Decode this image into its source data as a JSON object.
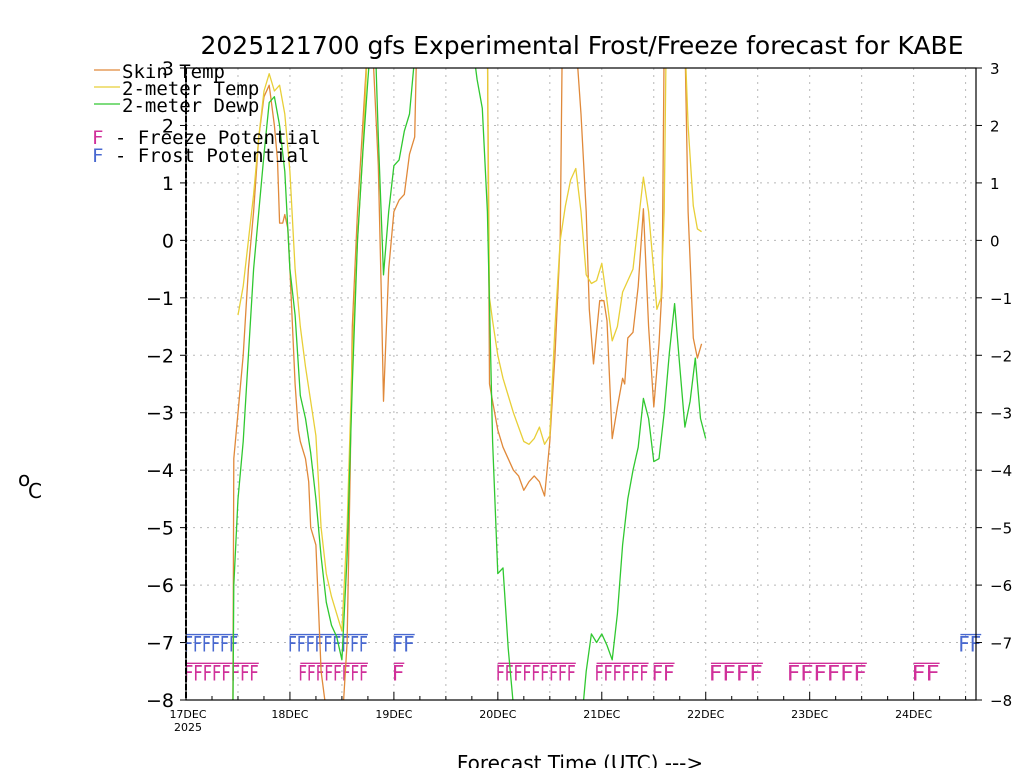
{
  "chart_data": {
    "type": "line",
    "title": "2025121700 gfs Experimental Frost/Freeze forecast for KABE",
    "ylabel": "°C",
    "ylabel_sup": "o",
    "ylabel_main": "C",
    "xlabel": "Forecast Time (UTC) --->",
    "ylim": [
      -8,
      3
    ],
    "xlim": [
      0,
      7.6
    ],
    "yticks": [
      3,
      2,
      1,
      0,
      -1,
      -2,
      -3,
      -4,
      -5,
      -6,
      -7,
      -8
    ],
    "ytick_labels": [
      "3",
      "2",
      "1",
      "0",
      "−1",
      "−2",
      "−3",
      "−4",
      "−5",
      "−6",
      "−7",
      "−8"
    ],
    "x_day_ticks": [
      {
        "x": 0,
        "label": "17DEC"
      },
      {
        "x": 1,
        "label": "18DEC"
      },
      {
        "x": 2,
        "label": "19DEC"
      },
      {
        "x": 3,
        "label": "20DEC"
      },
      {
        "x": 4,
        "label": "21DEC"
      },
      {
        "x": 5,
        "label": "22DEC"
      },
      {
        "x": 6,
        "label": "23DEC"
      },
      {
        "x": 7,
        "label": "24DEC"
      }
    ],
    "year_label": "2025",
    "legend": [
      {
        "name": "Skin Temp",
        "color": "#e0893a"
      },
      {
        "name": "2-meter Temp",
        "color": "#e8cf38"
      },
      {
        "name": "2-meter Dewp",
        "color": "#30c830"
      }
    ],
    "flag_legend": [
      {
        "letter": "F",
        "text": " - Freeze Potential",
        "color": "#d0309a"
      },
      {
        "letter": "F",
        "text": " - Frost Potential",
        "color": "#4868d0"
      }
    ],
    "series": [
      {
        "name": "Skin Temp",
        "color": "#e0893a",
        "points": [
          [
            0.45,
            -8.5
          ],
          [
            0.46,
            -3.8
          ],
          [
            0.5,
            -3
          ],
          [
            0.55,
            -2
          ],
          [
            0.6,
            -0.5
          ],
          [
            0.65,
            0.5
          ],
          [
            0.7,
            1.8
          ],
          [
            0.75,
            2.5
          ],
          [
            0.8,
            2.7
          ],
          [
            0.85,
            2
          ],
          [
            0.88,
            1.4
          ],
          [
            0.9,
            0.3
          ],
          [
            0.93,
            0.3
          ],
          [
            0.95,
            0.45
          ],
          [
            0.98,
            0.2
          ],
          [
            1.0,
            -0.5
          ],
          [
            1.05,
            -2.5
          ],
          [
            1.08,
            -3.3
          ],
          [
            1.1,
            -3.5
          ],
          [
            1.15,
            -3.8
          ],
          [
            1.18,
            -4.2
          ],
          [
            1.2,
            -5
          ],
          [
            1.25,
            -5.3
          ],
          [
            1.3,
            -7.5
          ],
          [
            1.35,
            -8.2
          ],
          [
            1.5,
            -8.5
          ],
          [
            1.55,
            -7
          ],
          [
            1.58,
            -4
          ],
          [
            1.6,
            -1.5
          ],
          [
            1.65,
            0.5
          ],
          [
            1.7,
            2
          ],
          [
            1.75,
            3.5
          ],
          [
            1.8,
            3.2
          ],
          [
            1.85,
            1.3
          ],
          [
            1.88,
            -1
          ],
          [
            1.9,
            -2.8
          ],
          [
            1.95,
            -0.5
          ],
          [
            2.0,
            0.5
          ],
          [
            2.05,
            0.7
          ],
          [
            2.1,
            0.8
          ],
          [
            2.15,
            1.5
          ],
          [
            2.2,
            1.8
          ],
          [
            2.22,
            3.5
          ]
        ]
      },
      {
        "name": "Skin Temp",
        "color": "#e0893a",
        "points": [
          [
            2.9,
            3.5
          ],
          [
            2.92,
            -2.5
          ],
          [
            2.95,
            -2.8
          ],
          [
            3.0,
            -3.3
          ],
          [
            3.05,
            -3.6
          ],
          [
            3.1,
            -3.8
          ],
          [
            3.15,
            -4.0
          ],
          [
            3.2,
            -4.1
          ],
          [
            3.25,
            -4.35
          ],
          [
            3.3,
            -4.2
          ],
          [
            3.35,
            -4.1
          ],
          [
            3.4,
            -4.2
          ],
          [
            3.45,
            -4.45
          ],
          [
            3.5,
            -3.5
          ],
          [
            3.55,
            -2
          ],
          [
            3.6,
            0
          ],
          [
            3.62,
            3.5
          ]
        ]
      },
      {
        "name": "Skin Temp",
        "color": "#e0893a",
        "points": [
          [
            3.75,
            3.5
          ],
          [
            3.8,
            2.2
          ],
          [
            3.85,
            0.5
          ],
          [
            3.88,
            -1.2
          ],
          [
            3.92,
            -2.15
          ],
          [
            3.95,
            -1.6
          ],
          [
            3.98,
            -1.05
          ],
          [
            4.02,
            -1.05
          ],
          [
            4.05,
            -1.4
          ],
          [
            4.1,
            -3.45
          ],
          [
            4.15,
            -2.9
          ],
          [
            4.2,
            -2.4
          ],
          [
            4.22,
            -2.5
          ],
          [
            4.25,
            -1.7
          ],
          [
            4.3,
            -1.6
          ],
          [
            4.35,
            -0.8
          ],
          [
            4.4,
            0.55
          ],
          [
            4.45,
            -1.5
          ],
          [
            4.5,
            -2.9
          ],
          [
            4.55,
            -1.8
          ],
          [
            4.58,
            -0.8
          ],
          [
            4.6,
            3.5
          ]
        ]
      },
      {
        "name": "Skin Temp",
        "color": "#e0893a",
        "points": [
          [
            4.8,
            3.5
          ],
          [
            4.83,
            0.5
          ],
          [
            4.88,
            -1.7
          ],
          [
            4.92,
            -2.05
          ],
          [
            4.96,
            -1.8
          ]
        ]
      },
      {
        "name": "2-meter Temp",
        "color": "#e8cf38",
        "points": [
          [
            0.5,
            -1.3
          ],
          [
            0.55,
            -0.8
          ],
          [
            0.6,
            0
          ],
          [
            0.65,
            0.8
          ],
          [
            0.7,
            1.8
          ],
          [
            0.75,
            2.6
          ],
          [
            0.8,
            2.9
          ],
          [
            0.85,
            2.6
          ],
          [
            0.9,
            2.7
          ],
          [
            0.95,
            2.2
          ],
          [
            1.0,
            1.2
          ],
          [
            1.05,
            -0.5
          ],
          [
            1.1,
            -1.5
          ],
          [
            1.15,
            -2.2
          ],
          [
            1.2,
            -2.8
          ],
          [
            1.25,
            -3.4
          ],
          [
            1.3,
            -5
          ],
          [
            1.35,
            -5.8
          ],
          [
            1.4,
            -6.2
          ],
          [
            1.45,
            -6.5
          ],
          [
            1.5,
            -6.8
          ],
          [
            1.55,
            -5
          ],
          [
            1.6,
            -2
          ],
          [
            1.65,
            0
          ],
          [
            1.7,
            1.5
          ],
          [
            1.75,
            3.5
          ]
        ]
      },
      {
        "name": "2-meter Temp",
        "color": "#e8cf38",
        "points": [
          [
            2.9,
            3.5
          ],
          [
            2.92,
            -1.0
          ],
          [
            2.95,
            -1.4
          ],
          [
            3.0,
            -2.0
          ],
          [
            3.05,
            -2.4
          ],
          [
            3.1,
            -2.7
          ],
          [
            3.15,
            -3.0
          ],
          [
            3.2,
            -3.25
          ],
          [
            3.25,
            -3.5
          ],
          [
            3.3,
            -3.55
          ],
          [
            3.35,
            -3.45
          ],
          [
            3.4,
            -3.25
          ],
          [
            3.45,
            -3.55
          ],
          [
            3.5,
            -3.4
          ],
          [
            3.55,
            -1.5
          ],
          [
            3.6,
            0
          ],
          [
            3.65,
            0.6
          ],
          [
            3.7,
            1.05
          ],
          [
            3.75,
            1.25
          ],
          [
            3.8,
            0.5
          ],
          [
            3.85,
            -0.6
          ],
          [
            3.9,
            -0.75
          ],
          [
            3.95,
            -0.7
          ],
          [
            4.0,
            -0.4
          ],
          [
            4.05,
            -1.05
          ],
          [
            4.1,
            -1.75
          ],
          [
            4.15,
            -1.5
          ],
          [
            4.2,
            -0.9
          ],
          [
            4.25,
            -0.7
          ],
          [
            4.3,
            -0.5
          ],
          [
            4.35,
            0.3
          ],
          [
            4.4,
            1.1
          ],
          [
            4.45,
            0.5
          ],
          [
            4.5,
            -0.55
          ],
          [
            4.53,
            -1.2
          ],
          [
            4.57,
            -1.0
          ],
          [
            4.6,
            0.5
          ],
          [
            4.62,
            3.5
          ]
        ]
      },
      {
        "name": "2-meter Temp",
        "color": "#e8cf38",
        "points": [
          [
            4.8,
            3.5
          ],
          [
            4.83,
            2.0
          ],
          [
            4.88,
            0.6
          ],
          [
            4.92,
            0.2
          ],
          [
            4.96,
            0.15
          ]
        ]
      },
      {
        "name": "2-meter Dewp",
        "color": "#30c830",
        "points": [
          [
            0.45,
            -8.5
          ],
          [
            0.46,
            -6
          ],
          [
            0.5,
            -4.5
          ],
          [
            0.55,
            -3.5
          ],
          [
            0.6,
            -2
          ],
          [
            0.65,
            -0.5
          ],
          [
            0.7,
            0.5
          ],
          [
            0.75,
            1.5
          ],
          [
            0.8,
            2.4
          ],
          [
            0.85,
            2.5
          ],
          [
            0.9,
            2.0
          ],
          [
            0.95,
            1.2
          ],
          [
            1.0,
            -0.5
          ],
          [
            1.05,
            -1.3
          ],
          [
            1.1,
            -2.7
          ],
          [
            1.15,
            -3.1
          ],
          [
            1.2,
            -3.7
          ],
          [
            1.25,
            -4.5
          ],
          [
            1.3,
            -5.5
          ],
          [
            1.35,
            -6.3
          ],
          [
            1.4,
            -6.7
          ],
          [
            1.45,
            -6.9
          ],
          [
            1.5,
            -7.3
          ],
          [
            1.55,
            -5.5
          ],
          [
            1.6,
            -2.5
          ],
          [
            1.65,
            0
          ],
          [
            1.7,
            1.5
          ],
          [
            1.75,
            2.8
          ],
          [
            1.78,
            3.5
          ]
        ]
      },
      {
        "name": "2-meter Dewp",
        "color": "#30c830",
        "points": [
          [
            1.82,
            3.5
          ],
          [
            1.85,
            1.8
          ],
          [
            1.9,
            -0.6
          ],
          [
            1.95,
            0.5
          ],
          [
            2.0,
            1.3
          ],
          [
            2.05,
            1.4
          ],
          [
            2.1,
            1.9
          ],
          [
            2.15,
            2.2
          ],
          [
            2.2,
            3.2
          ],
          [
            2.22,
            3.5
          ]
        ]
      },
      {
        "name": "2-meter Dewp",
        "color": "#30c830",
        "points": [
          [
            2.75,
            3.5
          ],
          [
            2.8,
            2.8
          ],
          [
            2.85,
            2.3
          ],
          [
            2.9,
            0.5
          ],
          [
            2.95,
            -3.5
          ],
          [
            3.0,
            -5.8
          ],
          [
            3.05,
            -5.7
          ],
          [
            3.1,
            -7.1
          ],
          [
            3.15,
            -8.1
          ],
          [
            3.2,
            -8.5
          ]
        ]
      },
      {
        "name": "2-meter Dewp",
        "color": "#30c830",
        "points": [
          [
            3.8,
            -8.5
          ],
          [
            3.85,
            -7.5
          ],
          [
            3.9,
            -6.85
          ],
          [
            3.95,
            -7.0
          ],
          [
            4.0,
            -6.85
          ],
          [
            4.05,
            -7.05
          ],
          [
            4.1,
            -7.3
          ],
          [
            4.15,
            -6.5
          ],
          [
            4.2,
            -5.3
          ],
          [
            4.25,
            -4.5
          ],
          [
            4.3,
            -4.0
          ],
          [
            4.35,
            -3.6
          ],
          [
            4.4,
            -2.75
          ],
          [
            4.45,
            -3.1
          ],
          [
            4.5,
            -3.85
          ],
          [
            4.55,
            -3.8
          ],
          [
            4.6,
            -3.0
          ],
          [
            4.65,
            -1.95
          ],
          [
            4.7,
            -1.1
          ],
          [
            4.75,
            -2.2
          ],
          [
            4.8,
            -3.25
          ],
          [
            4.85,
            -2.8
          ],
          [
            4.9,
            -2.05
          ],
          [
            4.95,
            -3.1
          ],
          [
            5.0,
            -3.45
          ]
        ]
      }
    ],
    "flag_rows": [
      {
        "name": "frost",
        "color": "#4868d0",
        "level": -7.0,
        "groups": [
          {
            "x0": 0.0,
            "x1": 0.5,
            "text": "FFFFFF"
          },
          {
            "x0": 1.0,
            "x1": 1.75,
            "text": "FFFFFFFFF"
          },
          {
            "x0": 2.0,
            "x1": 2.2,
            "text": "FF"
          },
          {
            "x0": 7.45,
            "x1": 7.65,
            "text": "FF"
          }
        ]
      },
      {
        "name": "freeze",
        "color": "#d0309a",
        "level": -7.5,
        "groups": [
          {
            "x0": 0.0,
            "x1": 0.7,
            "text": "FFFFFFFF"
          },
          {
            "x0": 1.1,
            "x1": 1.75,
            "text": "FFFFFFFF"
          },
          {
            "x0": 2.0,
            "x1": 2.1,
            "text": "F"
          },
          {
            "x0": 3.0,
            "x1": 3.75,
            "text": "FFFFFFFFF"
          },
          {
            "x0": 3.95,
            "x1": 4.45,
            "text": "FFFFFF"
          },
          {
            "x0": 4.5,
            "x1": 4.7,
            "text": "FF"
          },
          {
            "x0": 5.05,
            "x1": 5.55,
            "text": "FFFF"
          },
          {
            "x0": 5.8,
            "x1": 6.55,
            "text": "FFFFFF"
          },
          {
            "x0": 7.0,
            "x1": 7.25,
            "text": "FF"
          }
        ]
      }
    ]
  }
}
